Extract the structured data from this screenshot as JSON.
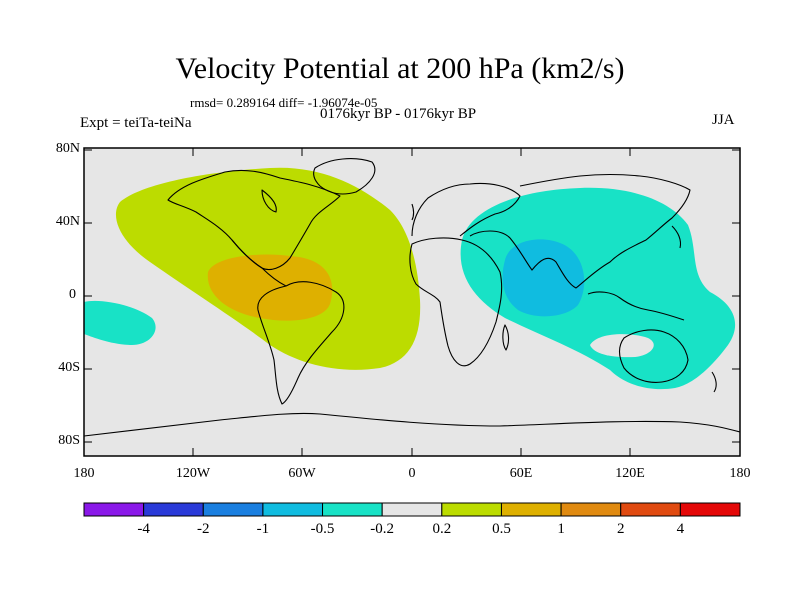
{
  "header": {
    "title": "Velocity Potential at 200 hPa (km2/s)",
    "stats": "rmsd= 0.289164  diff= -1.96074e-05",
    "subtitle": "0176kyr BP - 0176kyr BP",
    "experiment": "Expt = teiTa-teiNa",
    "season": "JJA"
  },
  "axes": {
    "lat_labels": [
      "80N",
      "40N",
      "0",
      "40S",
      "80S"
    ],
    "lon_labels": [
      "180",
      "120W",
      "60W",
      "0",
      "60E",
      "120E",
      "180"
    ]
  },
  "colorbar": {
    "labels": [
      "-4",
      "-2",
      "-1",
      "-0.5",
      "-0.2",
      "0.2",
      "0.5",
      "1",
      "2",
      "4"
    ],
    "colors": [
      "#8a18e8",
      "#2a3ad8",
      "#1a7fe0",
      "#10bce0",
      "#18e2c6",
      "#e6e6e6",
      "#bcdc00",
      "#deb000",
      "#e08a10",
      "#e04a10",
      "#e40808"
    ]
  },
  "colors": {
    "neutral": "#e6e6e6",
    "positive_weak": "#bcdc00",
    "positive_mid": "#deb000",
    "negative_weak": "#18e2c6",
    "negative_mid": "#10bce0"
  }
}
